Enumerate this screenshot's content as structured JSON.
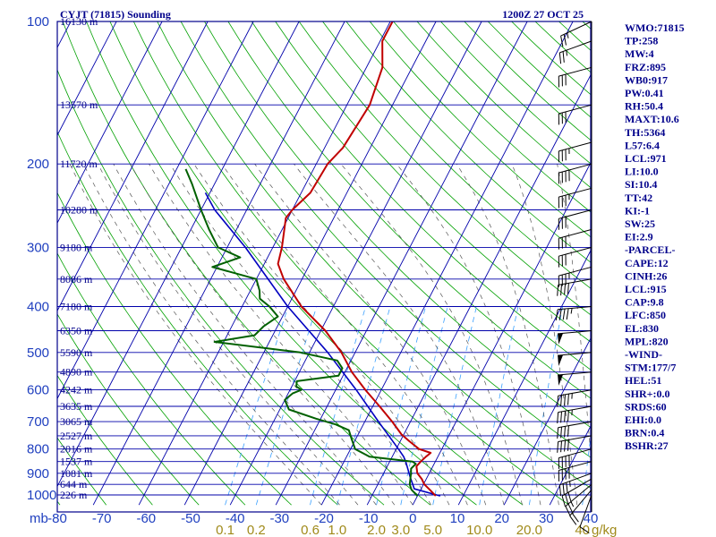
{
  "header": {
    "station": "CYJT (71815) Sounding",
    "time": "1200Z 27 OCT 25"
  },
  "colors": {
    "frame": "#00008b",
    "grid": "#0000aa",
    "dry_adiabat": "#00a000",
    "moist_adiabat": "#555555",
    "mixing_ratio": "#3aa0ff",
    "temperature": "#c00000",
    "dewpoint": "#006000",
    "parcel": "#0000c0",
    "mixing_label": "#a08a1a",
    "wind_barb": "#000000"
  },
  "chart_data": {
    "type": "skew-t",
    "pressure_axis": {
      "unit": "mb",
      "levels": [
        100,
        200,
        300,
        400,
        500,
        600,
        700,
        800,
        900,
        1000
      ],
      "range": [
        100,
        1050
      ]
    },
    "temperature_axis": {
      "ticks": [
        -80,
        -70,
        -60,
        -50,
        -40,
        -30,
        -20,
        -10,
        0,
        10,
        20,
        30,
        40
      ],
      "range": [
        -80,
        40
      ]
    },
    "height_labels": [
      {
        "p": 100,
        "label": "16130 m"
      },
      {
        "p": 150,
        "label": "13570 m"
      },
      {
        "p": 200,
        "label": "11720 m"
      },
      {
        "p": 250,
        "label": "10280 m"
      },
      {
        "p": 300,
        "label": "9180 m"
      },
      {
        "p": 350,
        "label": "8086 m"
      },
      {
        "p": 400,
        "label": "7180 m"
      },
      {
        "p": 450,
        "label": "6350 m"
      },
      {
        "p": 500,
        "label": "5590 m"
      },
      {
        "p": 550,
        "label": "4890 m"
      },
      {
        "p": 600,
        "label": "4242 m"
      },
      {
        "p": 650,
        "label": "3635 m"
      },
      {
        "p": 700,
        "label": "3065 m"
      },
      {
        "p": 750,
        "label": "2527 m"
      },
      {
        "p": 800,
        "label": "2016 m"
      },
      {
        "p": 850,
        "label": "1537 m"
      },
      {
        "p": 900,
        "label": "1081 m"
      },
      {
        "p": 950,
        "label": "644 m"
      },
      {
        "p": 1000,
        "label": "226 m"
      }
    ],
    "mixing_ratio_labels": [
      "0.1",
      "0.2",
      "0.6",
      "1.0",
      "2.0",
      "3.0",
      "5.0",
      "10.0",
      "20.0",
      "40",
      "g/kg"
    ],
    "temperature_profile": [
      {
        "p": 1005,
        "t": 4.0
      },
      {
        "p": 975,
        "t": 2.0
      },
      {
        "p": 950,
        "t": 0.2
      },
      {
        "p": 925,
        "t": -1.0
      },
      {
        "p": 900,
        "t": -2.6
      },
      {
        "p": 870,
        "t": -3.6
      },
      {
        "p": 850,
        "t": -3.2
      },
      {
        "p": 830,
        "t": -2.6
      },
      {
        "p": 815,
        "t": -2.0
      },
      {
        "p": 800,
        "t": -5.0
      },
      {
        "p": 770,
        "t": -8.0
      },
      {
        "p": 745,
        "t": -10.5
      },
      {
        "p": 700,
        "t": -14.0
      },
      {
        "p": 650,
        "t": -18.5
      },
      {
        "p": 600,
        "t": -23.5
      },
      {
        "p": 550,
        "t": -28.5
      },
      {
        "p": 500,
        "t": -33.0
      },
      {
        "p": 450,
        "t": -39.0
      },
      {
        "p": 400,
        "t": -47.0
      },
      {
        "p": 350,
        "t": -54.0
      },
      {
        "p": 325,
        "t": -57.0
      },
      {
        "p": 300,
        "t": -58.0
      },
      {
        "p": 260,
        "t": -60.5
      },
      {
        "p": 250,
        "t": -60.0
      },
      {
        "p": 230,
        "t": -58.0
      },
      {
        "p": 200,
        "t": -57.5
      },
      {
        "p": 185,
        "t": -56.0
      },
      {
        "p": 150,
        "t": -55.0
      },
      {
        "p": 125,
        "t": -56.5
      },
      {
        "p": 110,
        "t": -59.5
      },
      {
        "p": 100,
        "t": -59.5
      }
    ],
    "dewpoint_profile": [
      {
        "p": 1005,
        "t": 0.0
      },
      {
        "p": 975,
        "t": -2.0
      },
      {
        "p": 950,
        "t": -3.0
      },
      {
        "p": 925,
        "t": -3.5
      },
      {
        "p": 900,
        "t": -4.0
      },
      {
        "p": 880,
        "t": -4.5
      },
      {
        "p": 860,
        "t": -4.0
      },
      {
        "p": 850,
        "t": -5.0
      },
      {
        "p": 830,
        "t": -15.0
      },
      {
        "p": 800,
        "t": -19.0
      },
      {
        "p": 760,
        "t": -21.0
      },
      {
        "p": 730,
        "t": -22.5
      },
      {
        "p": 710,
        "t": -26.0
      },
      {
        "p": 690,
        "t": -31.0
      },
      {
        "p": 660,
        "t": -38.0
      },
      {
        "p": 630,
        "t": -40.0
      },
      {
        "p": 610,
        "t": -39.0
      },
      {
        "p": 600,
        "t": -37.5
      },
      {
        "p": 590,
        "t": -39.0
      },
      {
        "p": 575,
        "t": -39.5
      },
      {
        "p": 560,
        "t": -31.0
      },
      {
        "p": 540,
        "t": -31.0
      },
      {
        "p": 520,
        "t": -33.0
      },
      {
        "p": 500,
        "t": -42.0
      },
      {
        "p": 475,
        "t": -62.0
      },
      {
        "p": 460,
        "t": -54.0
      },
      {
        "p": 440,
        "t": -53.0
      },
      {
        "p": 420,
        "t": -51.0
      },
      {
        "p": 400,
        "t": -54.0
      },
      {
        "p": 385,
        "t": -57.0
      },
      {
        "p": 370,
        "t": -58.0
      },
      {
        "p": 350,
        "t": -60.0
      },
      {
        "p": 330,
        "t": -71.0
      },
      {
        "p": 315,
        "t": -66.0
      },
      {
        "p": 300,
        "t": -72.0
      },
      {
        "p": 275,
        "t": -76.0
      },
      {
        "p": 250,
        "t": -80.0
      },
      {
        "p": 220,
        "t": -85.0
      },
      {
        "p": 205,
        "t": -88.0
      }
    ],
    "parcel_profile": [
      {
        "p": 1005,
        "t": 5.0
      },
      {
        "p": 971,
        "t": -1.5
      },
      {
        "p": 915,
        "t": -3.8
      },
      {
        "p": 850,
        "t": -6.5
      },
      {
        "p": 830,
        "t": -7.5
      },
      {
        "p": 800,
        "t": -9.5
      },
      {
        "p": 700,
        "t": -17.0
      },
      {
        "p": 600,
        "t": -25.5
      },
      {
        "p": 500,
        "t": -36.0
      },
      {
        "p": 400,
        "t": -50.0
      },
      {
        "p": 300,
        "t": -66.0
      },
      {
        "p": 250,
        "t": -77.0
      },
      {
        "p": 230,
        "t": -81.0
      }
    ],
    "wind_barbs": [
      {
        "p": 1000,
        "dir": 200,
        "spd": 10
      },
      {
        "p": 975,
        "dir": 220,
        "spd": 20
      },
      {
        "p": 950,
        "dir": 230,
        "spd": 25
      },
      {
        "p": 925,
        "dir": 240,
        "spd": 30
      },
      {
        "p": 900,
        "dir": 250,
        "spd": 35
      },
      {
        "p": 850,
        "dir": 255,
        "spd": 40
      },
      {
        "p": 800,
        "dir": 255,
        "spd": 40
      },
      {
        "p": 750,
        "dir": 260,
        "spd": 40
      },
      {
        "p": 700,
        "dir": 260,
        "spd": 40
      },
      {
        "p": 650,
        "dir": 260,
        "spd": 45
      },
      {
        "p": 600,
        "dir": 260,
        "spd": 45
      },
      {
        "p": 550,
        "dir": 265,
        "spd": 50
      },
      {
        "p": 500,
        "dir": 265,
        "spd": 50
      },
      {
        "p": 450,
        "dir": 265,
        "spd": 50
      },
      {
        "p": 400,
        "dir": 265,
        "spd": 45
      },
      {
        "p": 350,
        "dir": 260,
        "spd": 40
      },
      {
        "p": 330,
        "dir": 255,
        "spd": 35
      },
      {
        "p": 300,
        "dir": 255,
        "spd": 30
      },
      {
        "p": 275,
        "dir": 255,
        "spd": 30
      },
      {
        "p": 250,
        "dir": 255,
        "spd": 30
      },
      {
        "p": 225,
        "dir": 255,
        "spd": 35
      },
      {
        "p": 200,
        "dir": 255,
        "spd": 40
      },
      {
        "p": 180,
        "dir": 255,
        "spd": 35
      },
      {
        "p": 150,
        "dir": 255,
        "spd": 30
      },
      {
        "p": 125,
        "dir": 255,
        "spd": 30
      },
      {
        "p": 110,
        "dir": 250,
        "spd": 25
      },
      {
        "p": 100,
        "dir": 245,
        "spd": 25
      }
    ]
  },
  "indices": [
    "WMO:71815",
    "TP:258",
    "MW:4",
    "FRZ:895",
    "WB0:917",
    "PW:0.41",
    "RH:50.4",
    "MAXT:10.6",
    "TH:5364",
    "L57:6.4",
    "LCL:971",
    "LI:10.0",
    "SI:10.4",
    "TT:42",
    "KI:-1",
    "SW:25",
    "EI:2.9",
    "-PARCEL-",
    "CAPE:12",
    "CINH:26",
    "LCL:915",
    "CAP:9.8",
    "LFC:850",
    "EL:830",
    "MPL:820",
    "-WIND-",
    "STM:177/7",
    "HEL:51",
    "SHR+:0.0",
    "SRDS:60",
    "EHI:0.0",
    "BRN:0.4",
    "BSHR:27"
  ]
}
